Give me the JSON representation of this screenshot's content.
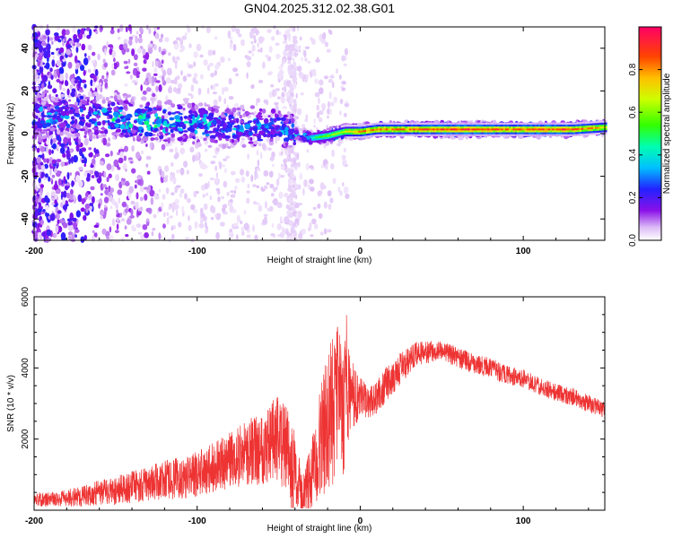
{
  "title": "GN04.2025.312.02.38.G01",
  "chart_data": [
    {
      "type": "heatmap",
      "xlabel": "Height of straight line (km)",
      "ylabel": "Frequency (Hz)",
      "xlim": [
        -200,
        150
      ],
      "ylim": [
        -50,
        50
      ],
      "x_ticks": [
        "-200",
        "-100",
        "0",
        "100"
      ],
      "x_tick_values": [
        -200,
        -100,
        0,
        100
      ],
      "y_ticks": [
        "-40",
        "-20",
        "0",
        "20",
        "40"
      ],
      "y_tick_values": [
        -40,
        -20,
        0,
        20,
        40
      ],
      "colorbar": {
        "label": "Normalized spectral amplitude",
        "range": [
          0,
          1
        ],
        "ticks": [
          "0.0",
          "0.2",
          "0.4",
          "0.6",
          "0.8"
        ],
        "tick_values": [
          0,
          0.2,
          0.4,
          0.6,
          0.8
        ]
      },
      "ridge": {
        "x": [
          -165,
          -150,
          -130,
          -110,
          -90,
          -70,
          -50,
          -40,
          -30,
          -20,
          -10,
          0,
          10,
          30,
          50,
          70,
          90,
          110,
          130,
          150
        ],
        "frequency": [
          8,
          7,
          6,
          5,
          4,
          3,
          3,
          0,
          -2,
          -1,
          1,
          1,
          2,
          2,
          2,
          2,
          2,
          2,
          2,
          3
        ],
        "amplitude": [
          0.3,
          0.35,
          0.4,
          0.35,
          0.3,
          0.3,
          0.3,
          0.3,
          0.45,
          0.6,
          0.7,
          0.85,
          0.85,
          0.85,
          0.95,
          0.95,
          0.85,
          0.95,
          0.9,
          0.75
        ]
      }
    },
    {
      "type": "line",
      "xlabel": "Height of straight line (km)",
      "ylabel": "SNR (10 * v/v)",
      "xlim": [
        -200,
        150
      ],
      "ylim": [
        0,
        6000
      ],
      "x_ticks": [
        "-200",
        "-100",
        "0",
        "100"
      ],
      "x_tick_values": [
        -200,
        -100,
        0,
        100
      ],
      "y_ticks": [
        "2000",
        "4000",
        "6000"
      ],
      "y_tick_values": [
        2000,
        4000,
        6000
      ],
      "color": "#ee3333",
      "series": [
        {
          "x": [
            -200,
            -190,
            -180,
            -170,
            -160,
            -150,
            -140,
            -130,
            -120,
            -110,
            -100,
            -90,
            -80,
            -70,
            -60,
            -50,
            -45,
            -40,
            -35,
            -30,
            -25,
            -20,
            -15,
            -10,
            -5,
            0,
            5,
            10,
            15,
            20,
            25,
            30,
            35,
            40,
            45,
            50,
            55,
            60,
            70,
            80,
            90,
            100,
            110,
            120,
            130,
            140,
            150
          ],
          "y": [
            300,
            300,
            350,
            400,
            500,
            550,
            650,
            750,
            850,
            900,
            1000,
            1200,
            1400,
            1600,
            1800,
            2000,
            1600,
            900,
            500,
            900,
            1800,
            2500,
            3000,
            3000,
            3200,
            3200,
            3000,
            3200,
            3500,
            3700,
            4000,
            4200,
            4400,
            4450,
            4450,
            4450,
            4400,
            4300,
            4100,
            4000,
            3800,
            3700,
            3500,
            3300,
            3200,
            3000,
            2800
          ],
          "noise": [
            200,
            200,
            250,
            300,
            350,
            400,
            450,
            500,
            550,
            600,
            650,
            700,
            800,
            900,
            1100,
            1300,
            1300,
            1100,
            500,
            1000,
            1500,
            2000,
            2200,
            2000,
            1000,
            600,
            400,
            500,
            500,
            450,
            450,
            400,
            350,
            320,
            300,
            300,
            300,
            300,
            280,
            280,
            270,
            260,
            260,
            250,
            250,
            250,
            240
          ]
        }
      ]
    }
  ]
}
